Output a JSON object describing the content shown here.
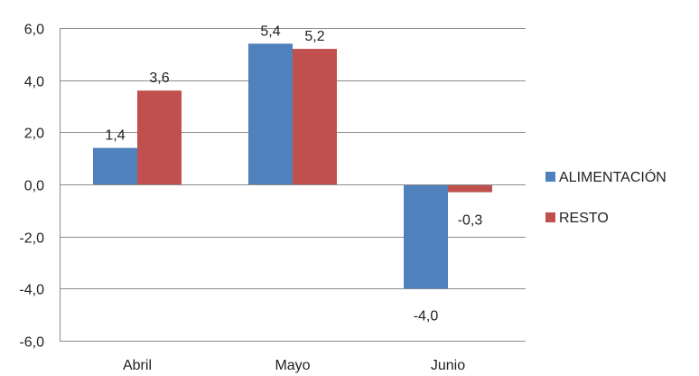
{
  "chart_data": {
    "type": "bar",
    "categories": [
      "Abril",
      "Mayo",
      "Junio"
    ],
    "series": [
      {
        "name": "ALIMENTACIÓN",
        "values": [
          1.4,
          5.4,
          -4.0
        ],
        "labels": [
          "1,4",
          "5,4",
          "-4,0"
        ],
        "color": "#4F81BD"
      },
      {
        "name": "RESTO",
        "values": [
          3.6,
          5.2,
          -0.3
        ],
        "labels": [
          "3,6",
          "5,2",
          "-0,3"
        ],
        "color": "#C0504D"
      }
    ],
    "ylim": [
      -6,
      6
    ],
    "yticks": [
      6,
      4,
      2,
      0,
      -2,
      -4,
      -6
    ],
    "ytick_labels": [
      "6,0",
      "4,0",
      "2,0",
      "0,0",
      "-2,0",
      "-4,0",
      "-6,0"
    ],
    "grid": true,
    "legend_position": "right",
    "title": "",
    "xlabel": "",
    "ylabel": ""
  }
}
